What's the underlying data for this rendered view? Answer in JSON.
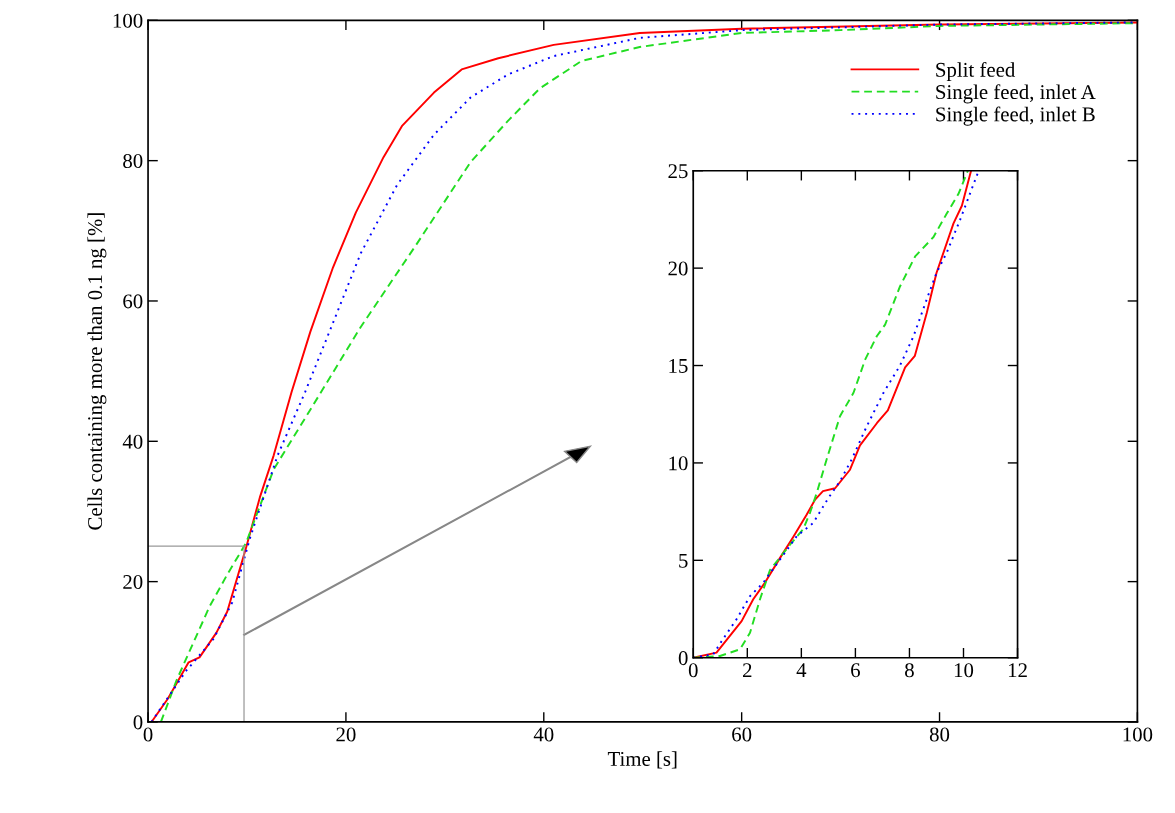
{
  "chart_data": [
    {
      "type": "line",
      "xlabel": "Time [s]",
      "ylabel": "Cells containing more than 0.1 ng [%]",
      "xlim": [
        0,
        100
      ],
      "ylim": [
        0,
        100
      ],
      "xticks": [
        0,
        20,
        40,
        60,
        80,
        100
      ],
      "yticks": [
        0,
        20,
        40,
        60,
        80,
        100
      ],
      "grid": false,
      "legend": "top right",
      "marker": "none",
      "series": [
        {
          "name": "Split feed",
          "color": "#ff0000",
          "line_style": "solid",
          "x": [
            0.35,
            2,
            4.1,
            5.2,
            6.9,
            8,
            9.9,
            11.3,
            12.7,
            14.5,
            16.4,
            18.7,
            21,
            23.8,
            25.7,
            28.9,
            31.7,
            35.4,
            41,
            49.7,
            60,
            80,
            100
          ],
          "values": [
            0,
            3.3,
            8.5,
            9.2,
            12.7,
            15.7,
            24.8,
            32,
            38,
            47,
            55.6,
            64.8,
            72.6,
            80.5,
            85,
            89.7,
            93,
            94.6,
            96.5,
            98.2,
            98.8,
            99.4,
            99.7
          ]
        },
        {
          "name": "Single feed, inlet A",
          "color": "#22dd22",
          "line_style": "dashed",
          "x": [
            1.3,
            2.9,
            6.2,
            8,
            9.9,
            12.7,
            16.4,
            21.5,
            27.1,
            32.6,
            36.4,
            39.6,
            43.8,
            49.7,
            60,
            70,
            80,
            100
          ],
          "values": [
            0,
            6,
            16.4,
            21,
            25.5,
            36,
            44.5,
            56.3,
            68,
            79.8,
            85.7,
            90.3,
            94.2,
            96.2,
            98.2,
            98.6,
            99.2,
            99.6
          ]
        },
        {
          "name": "Single feed, inlet B",
          "color": "#0000ff",
          "line_style": "dotted",
          "x": [
            0.35,
            3.8,
            6.6,
            8.5,
            10.3,
            13.1,
            15.9,
            18.7,
            21.5,
            25.2,
            28.9,
            32.6,
            36.4,
            41,
            49.7,
            60,
            80,
            100
          ],
          "values": [
            0,
            7.2,
            11.8,
            17,
            26.2,
            38,
            47.1,
            56.9,
            66.8,
            76.6,
            83.7,
            89,
            92.3,
            94.9,
            97.5,
            98.6,
            99.4,
            99.7
          ]
        }
      ]
    },
    {
      "type": "line",
      "xlim": [
        0,
        12
      ],
      "ylim": [
        0,
        25
      ],
      "xticks": [
        0,
        2,
        4,
        6,
        8,
        10,
        12
      ],
      "yticks": [
        0,
        5,
        10,
        15,
        20,
        25
      ],
      "grid": false,
      "marker": "none",
      "series": [
        {
          "color": "#ff0000",
          "line_style": "solid",
          "x": [
            0,
            0.86,
            1.79,
            2.22,
            2.65,
            3.2,
            3.7,
            4.2,
            4.5,
            4.8,
            5.25,
            5.8,
            6.17,
            6.8,
            7.2,
            7.84,
            8.2,
            8.64,
            9,
            9.63,
            9.94,
            10.28
          ],
          "values": [
            0,
            0.26,
            1.88,
            3,
            3.85,
            5.1,
            6.2,
            7.35,
            8.1,
            8.55,
            8.7,
            9.65,
            10.9,
            12.05,
            12.7,
            14.9,
            15.5,
            17.7,
            19.75,
            22.3,
            23.2,
            25
          ]
        },
        {
          "color": "#22dd22",
          "line_style": "dashed",
          "x": [
            0,
            0.99,
            1.73,
            2.1,
            2.47,
            2.84,
            3.58,
            4.07,
            4.32,
            4.57,
            4.94,
            5.43,
            5.93,
            6.36,
            6.79,
            7.1,
            7.65,
            8.21,
            8.89,
            9.38,
            9.81,
            10.16
          ],
          "values": [
            0,
            0.09,
            0.43,
            1.28,
            3,
            4.5,
            5.8,
            6.6,
            7.44,
            8.46,
            10.2,
            12.4,
            13.6,
            15.3,
            16.5,
            17.1,
            19.06,
            20.6,
            21.6,
            22.8,
            23.8,
            25
          ]
        },
        {
          "color": "#0000ff",
          "line_style": "dotted",
          "x": [
            0,
            0.74,
            1.05,
            1.6,
            2.1,
            2.59,
            3.21,
            3.83,
            4.44,
            5,
            5.43,
            5.86,
            6.42,
            7.04,
            7.65,
            8.15,
            8.64,
            9,
            9.38,
            9.88,
            10.56
          ],
          "values": [
            0,
            0.17,
            0.85,
            1.97,
            3.16,
            3.85,
            5.04,
            6.24,
            6.92,
            8.2,
            9.06,
            10.17,
            11.88,
            13.6,
            15,
            16.5,
            18.4,
            19.75,
            20.8,
            22.5,
            25
          ]
        }
      ]
    }
  ]
}
